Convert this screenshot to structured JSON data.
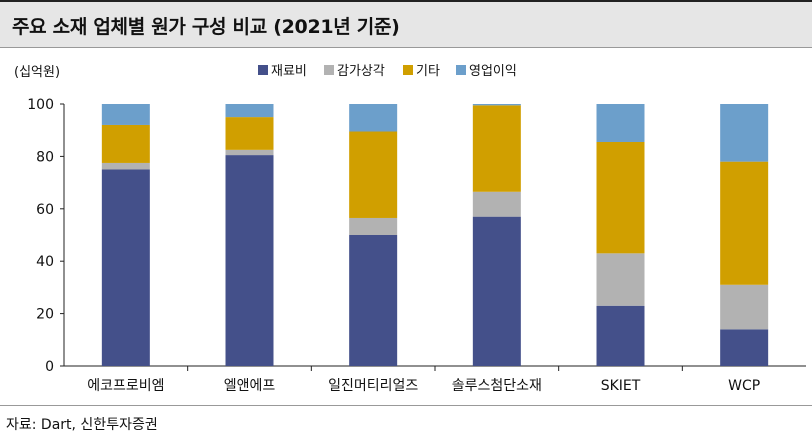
{
  "title": "주요 소재 업체별 원가 구성 비교 (2021년 기준)",
  "source": "자료: Dart, 신한투자증권",
  "chart_data": {
    "type": "bar",
    "stacked": true,
    "unit_label": "(십억원)",
    "categories": [
      "에코프로비엠",
      "엘앤에프",
      "일진머티리얼즈",
      "솔루스첨단소재",
      "SKIET",
      "WCP"
    ],
    "series": [
      {
        "name": "재료비",
        "color": "#44508a",
        "values": [
          75,
          80.5,
          50,
          57,
          23,
          14
        ]
      },
      {
        "name": "감가상각",
        "color": "#b2b2b2",
        "values": [
          2.5,
          2,
          6.5,
          9.5,
          20,
          17
        ]
      },
      {
        "name": "기타",
        "color": "#d09f00",
        "values": [
          14.5,
          12.5,
          33,
          33,
          42.5,
          47
        ]
      },
      {
        "name": "영업이익",
        "color": "#6c9fcb",
        "values": [
          8,
          5,
          10.5,
          0.5,
          14.5,
          22
        ]
      }
    ],
    "ylim": [
      0,
      100
    ],
    "yticks": [
      0,
      20,
      40,
      60,
      80,
      100
    ],
    "legend_position": "top-center",
    "grid": false
  }
}
